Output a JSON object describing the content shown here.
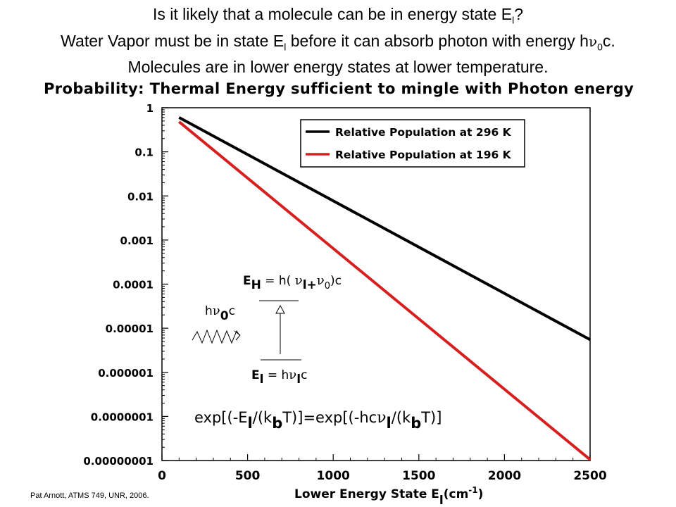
{
  "slide": {
    "title_line1_text": "Is it likely that a molecule can be in energy state E",
    "title_line1_sub": "l",
    "title_line1_end": "?",
    "title_line2_text": "Water Vapor must be in state E",
    "title_line2_sub": "l",
    "title_line2_mid": " before it can absorb photon with energy h",
    "title_line2_nu": "ν",
    "title_line2_sub2": "0",
    "title_line2_end": "c.",
    "title_line3": "Molecules are in lower energy states at lower temperature.",
    "credit": "Pat Arnott, ATMS 749, UNR, 2006."
  },
  "chart_data": {
    "type": "line",
    "title": "Probability:  Thermal Energy sufficient to mingle with Photon energy",
    "xlabel_text": "Lower Energy State E",
    "xlabel_sub": "l",
    "xlabel_unit": "(cm",
    "xlabel_unit_sup": "-1",
    "xlabel_unit_end": ")",
    "xlim": [
      0,
      2500
    ],
    "ylim": [
      1e-08,
      1
    ],
    "yscale": "log",
    "x_ticks": [
      0,
      500,
      1000,
      1500,
      2000,
      2500
    ],
    "x_tick_labels": [
      "0",
      "500",
      "1000",
      "1500",
      "2000",
      "2500"
    ],
    "y_ticks": [
      1,
      0.1,
      0.01,
      0.001,
      0.0001,
      1e-05,
      1e-06,
      1e-07,
      1e-08
    ],
    "y_tick_labels": [
      "1",
      "0.1",
      "0.01",
      "0.001",
      "0.0001",
      "0.00001",
      "0.000001",
      "0.0000001",
      "0.00000001"
    ],
    "legend_position": "top-right",
    "series": [
      {
        "name": "Relative Population at 296 K",
        "color": "#000000",
        "x": [
          100,
          2500
        ],
        "y": [
          0.6,
          5.5e-06
        ]
      },
      {
        "name": "Relative Population at 196 K",
        "color": "#d62020",
        "x": [
          100,
          2500
        ],
        "y": [
          0.48,
          1.05e-08
        ]
      }
    ],
    "annotations": {
      "formula_exp": "exp[(-E",
      "formula_sub_l": "l",
      "formula_div": "/(k",
      "formula_sub_b": "b",
      "formula_mid": "T)]=exp[(-hc",
      "formula_nu": "ν",
      "formula_sub_l2": "l",
      "formula_div2": "/(k",
      "formula_sub_b2": "b",
      "formula_end": "T)]",
      "eh_prefix": "E",
      "eh_sub": "H",
      "eh_mid": " = h( ",
      "eh_nu1": "ν",
      "eh_sub_l": "l",
      "eh_plus": "+",
      "eh_nu2": "ν",
      "eh_sub_0": "0",
      "eh_end": ")c",
      "el_prefix": "E",
      "el_sub": "l",
      "el_mid": " = h",
      "el_nu": "ν",
      "el_sub2": "l",
      "el_end": "c",
      "photon_h": "h",
      "photon_nu": "ν",
      "photon_sub": "0",
      "photon_c": "c"
    }
  }
}
